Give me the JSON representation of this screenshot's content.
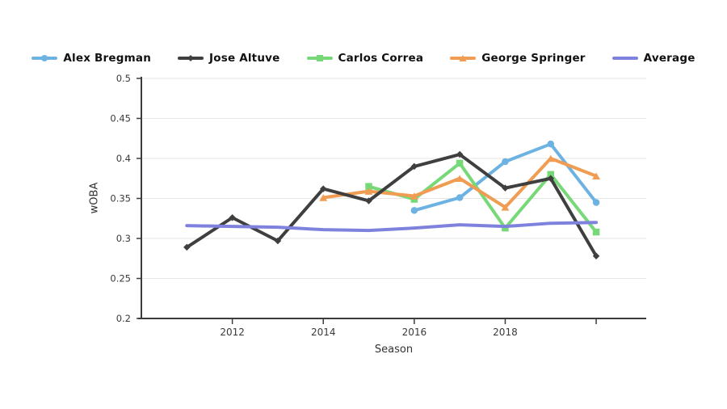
{
  "chart_data": {
    "type": "line",
    "title": "",
    "xlabel": "Season",
    "ylabel": "wOBA",
    "xlim": [
      2010,
      2021.1
    ],
    "ylim": [
      0.2,
      0.5
    ],
    "grid": true,
    "legend_position": "top",
    "xticks": [
      {
        "value": 2012,
        "label": "2012"
      },
      {
        "value": 2014,
        "label": "2014"
      },
      {
        "value": 2016,
        "label": "2016"
      },
      {
        "value": 2018,
        "label": "2018"
      },
      {
        "value": 2020,
        "label": ""
      }
    ],
    "yticks": [
      {
        "value": 0.2,
        "label": "0.2"
      },
      {
        "value": 0.25,
        "label": "0.25"
      },
      {
        "value": 0.3,
        "label": "0.3"
      },
      {
        "value": 0.35,
        "label": "0.35"
      },
      {
        "value": 0.4,
        "label": "0.4"
      },
      {
        "value": 0.45,
        "label": "0.45"
      },
      {
        "value": 0.5,
        "label": "0.5"
      }
    ],
    "series": [
      {
        "name": "Alex Bregman",
        "color": "#6CB2E2",
        "marker": "circle",
        "x": [
          2016,
          2017,
          2018,
          2019,
          2020
        ],
        "values": [
          0.335,
          0.351,
          0.396,
          0.418,
          0.345
        ]
      },
      {
        "name": "Jose Altuve",
        "color": "#3F3F3F",
        "marker": "diamond",
        "x": [
          2011,
          2012,
          2013,
          2014,
          2015,
          2016,
          2017,
          2018,
          2019,
          2020
        ],
        "values": [
          0.289,
          0.326,
          0.297,
          0.362,
          0.347,
          0.39,
          0.405,
          0.363,
          0.375,
          0.278
        ]
      },
      {
        "name": "Carlos Correa",
        "color": "#77D877",
        "marker": "square",
        "x": [
          2015,
          2016,
          2017,
          2018,
          2019,
          2020
        ],
        "values": [
          0.365,
          0.349,
          0.394,
          0.313,
          0.38,
          0.308
        ]
      },
      {
        "name": "George Springer",
        "color": "#F09C52",
        "marker": "triangle",
        "x": [
          2014,
          2015,
          2016,
          2017,
          2018,
          2019,
          2020
        ],
        "values": [
          0.351,
          0.359,
          0.353,
          0.375,
          0.339,
          0.4,
          0.378
        ]
      },
      {
        "name": "Average",
        "color": "#7E82DD",
        "marker": "none",
        "x": [
          2011,
          2012,
          2013,
          2014,
          2015,
          2016,
          2017,
          2018,
          2019,
          2020
        ],
        "values": [
          0.316,
          0.315,
          0.314,
          0.311,
          0.31,
          0.313,
          0.317,
          0.315,
          0.319,
          0.32
        ]
      }
    ],
    "colors": {
      "axis": "#3C3C3C",
      "grid": "#E6E6E6",
      "tick_text": "#3A3A3A",
      "label_text": "#333333",
      "legend_text": "#111111"
    }
  }
}
